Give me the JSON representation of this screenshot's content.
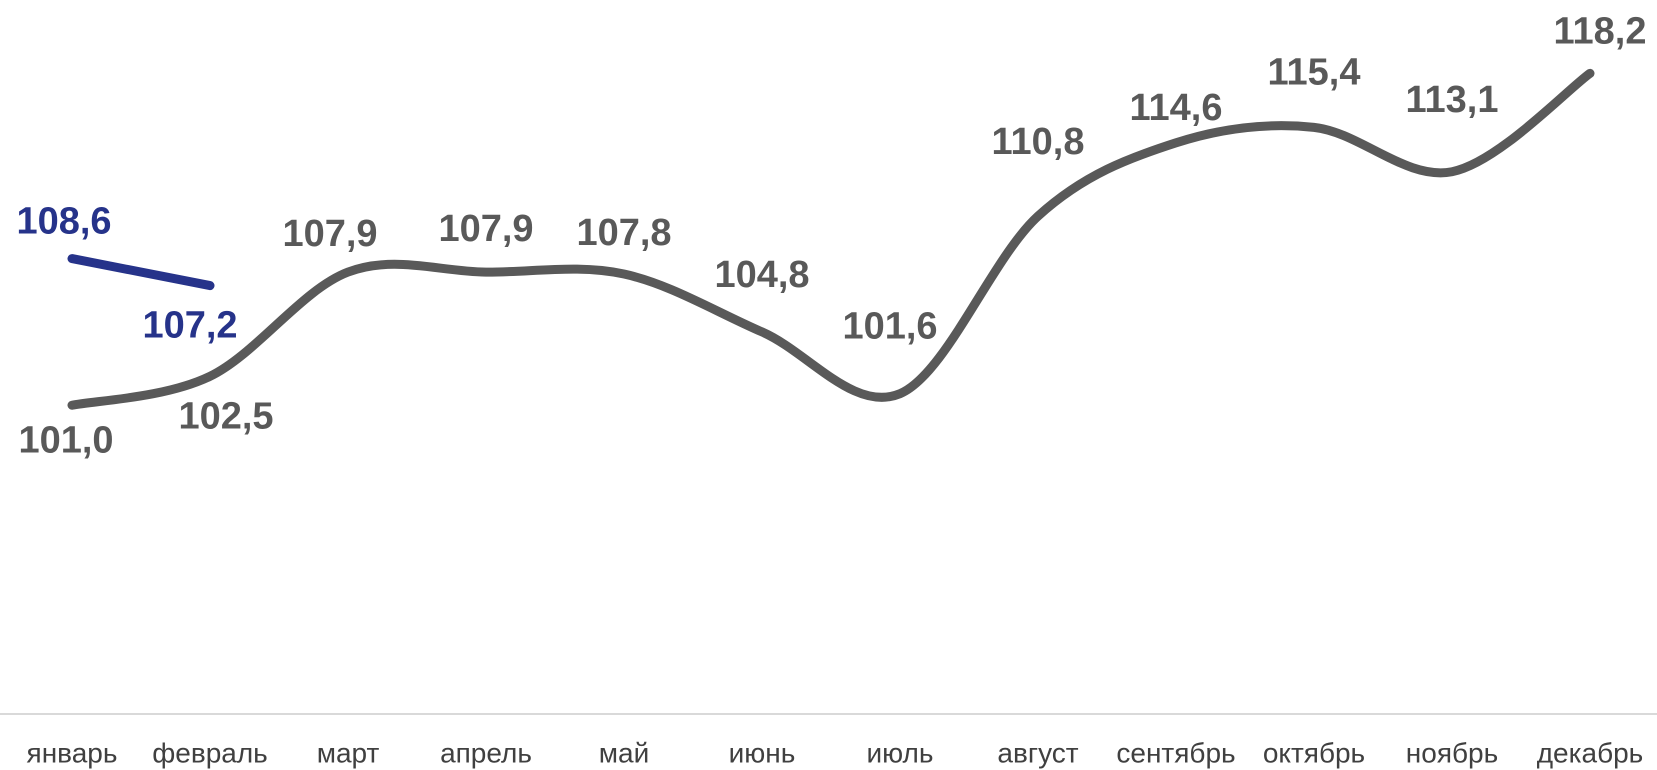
{
  "chart_data": {
    "type": "line",
    "categories": [
      "январь",
      "февраль",
      "март",
      "апрель",
      "май",
      "июнь",
      "июль",
      "август",
      "сентябрь",
      "октябрь",
      "ноябрь",
      "декабрь"
    ],
    "series": [
      {
        "color": "#595959",
        "values": [
          101.0,
          102.5,
          107.9,
          107.9,
          107.8,
          104.8,
          101.6,
          110.8,
          114.6,
          115.4,
          113.1,
          118.2
        ],
        "value_labels": [
          "101,0",
          "102,5",
          "107,9",
          "107,9",
          "107,8",
          "104,8",
          "101,6",
          "110,8",
          "114,6",
          "115,4",
          "113,1",
          "118,2"
        ]
      },
      {
        "color": "#26338a",
        "values": [
          108.6,
          107.2,
          null,
          null,
          null,
          null,
          null,
          null,
          null,
          null,
          null,
          null
        ],
        "value_labels": [
          "108,6",
          "107,2",
          null,
          null,
          null,
          null,
          null,
          null,
          null,
          null,
          null,
          null
        ]
      }
    ],
    "ylim": [
      85,
      122
    ],
    "smooth": true
  }
}
